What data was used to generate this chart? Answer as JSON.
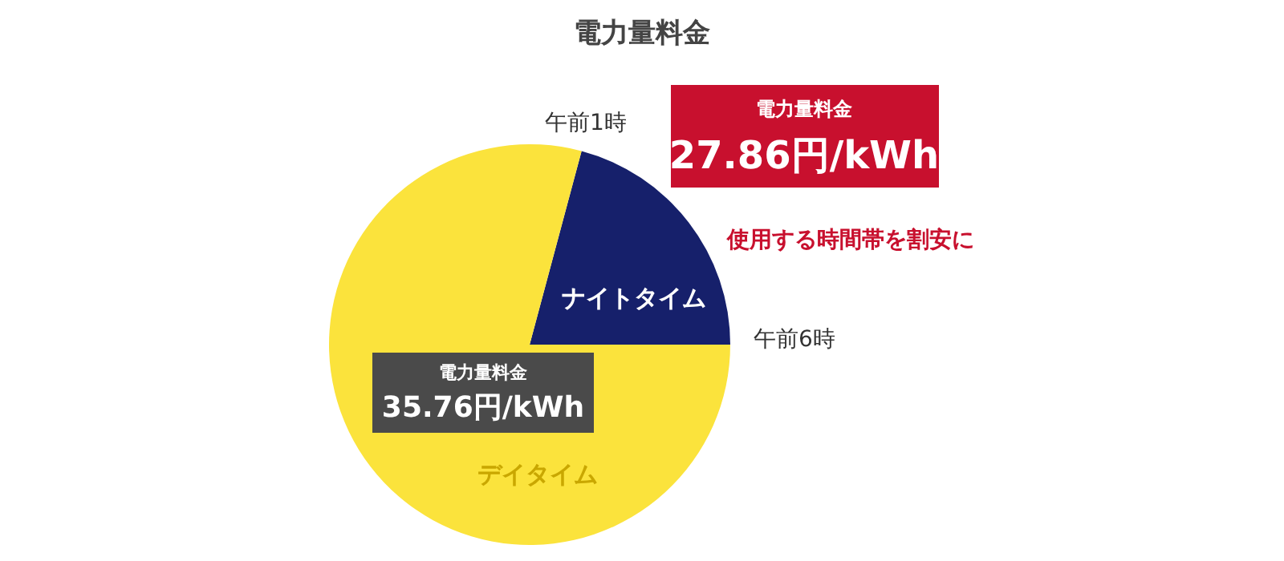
{
  "chart_data": {
    "type": "pie",
    "title": "電力量料金",
    "categories": [
      "ナイトタイム",
      "デイタイム"
    ],
    "values": [
      20.83,
      79.17
    ],
    "colors": [
      "#16206b",
      "#fbe33c"
    ],
    "annotations": [
      "午前1時",
      "午前6時",
      "電力量料金",
      "27.86円/kWh",
      "使用する時間帯を割安に",
      "電力量料金",
      "35.76円/kWh"
    ]
  }
}
